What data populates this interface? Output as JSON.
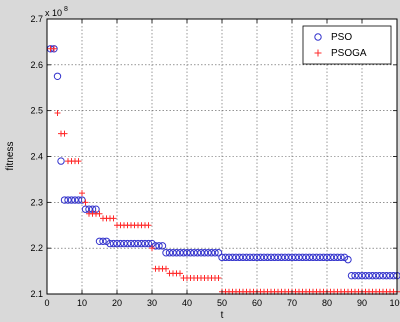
{
  "chart_data": {
    "type": "scatter",
    "title": "",
    "xlabel": "t",
    "ylabel": "fitness",
    "y_exponent_label": "x 10",
    "y_exponent_power": "8",
    "xlim": [
      0,
      100
    ],
    "ylim": [
      2.1,
      2.7
    ],
    "x_ticks": [
      0,
      10,
      20,
      30,
      40,
      50,
      60,
      70,
      80,
      90,
      100
    ],
    "y_ticks": [
      2.1,
      2.2,
      2.3,
      2.4,
      2.5,
      2.6,
      2.7
    ],
    "x_tick_labels": [
      "0",
      "10",
      "20",
      "30",
      "40",
      "50",
      "60",
      "70",
      "80",
      "90",
      "100"
    ],
    "y_tick_labels": [
      "2.1",
      "2.2",
      "2.3",
      "2.4",
      "2.5",
      "2.6",
      "2.7"
    ],
    "grid": true,
    "legend_position": "top-right",
    "series": [
      {
        "name": "PSO",
        "marker": "circle",
        "color": "#3333cc",
        "segments": [
          {
            "from": 1,
            "to": 2,
            "y": 2.635
          },
          {
            "from": 3,
            "to": 3,
            "y": 2.575
          },
          {
            "from": 4,
            "to": 4,
            "y": 2.39
          },
          {
            "from": 5,
            "to": 10,
            "y": 2.305
          },
          {
            "from": 11,
            "to": 14,
            "y": 2.285
          },
          {
            "from": 15,
            "to": 17,
            "y": 2.215
          },
          {
            "from": 18,
            "to": 30,
            "y": 2.21
          },
          {
            "from": 31,
            "to": 33,
            "y": 2.205
          },
          {
            "from": 34,
            "to": 49,
            "y": 2.19
          },
          {
            "from": 50,
            "to": 85,
            "y": 2.18
          },
          {
            "from": 86,
            "to": 86,
            "y": 2.175
          },
          {
            "from": 87,
            "to": 100,
            "y": 2.14
          }
        ]
      },
      {
        "name": "PSOGA",
        "marker": "plus",
        "color": "#ff2a2a",
        "segments": [
          {
            "from": 1,
            "to": 2,
            "y": 2.635
          },
          {
            "from": 3,
            "to": 3,
            "y": 2.495
          },
          {
            "from": 4,
            "to": 5,
            "y": 2.45
          },
          {
            "from": 6,
            "to": 9,
            "y": 2.39
          },
          {
            "from": 10,
            "to": 10,
            "y": 2.32
          },
          {
            "from": 11,
            "to": 11,
            "y": 2.3
          },
          {
            "from": 12,
            "to": 15,
            "y": 2.275
          },
          {
            "from": 16,
            "to": 19,
            "y": 2.265
          },
          {
            "from": 20,
            "to": 29,
            "y": 2.25
          },
          {
            "from": 30,
            "to": 30,
            "y": 2.2
          },
          {
            "from": 31,
            "to": 34,
            "y": 2.155
          },
          {
            "from": 35,
            "to": 38,
            "y": 2.145
          },
          {
            "from": 39,
            "to": 49,
            "y": 2.135
          },
          {
            "from": 50,
            "to": 100,
            "y": 2.105
          }
        ]
      }
    ]
  }
}
